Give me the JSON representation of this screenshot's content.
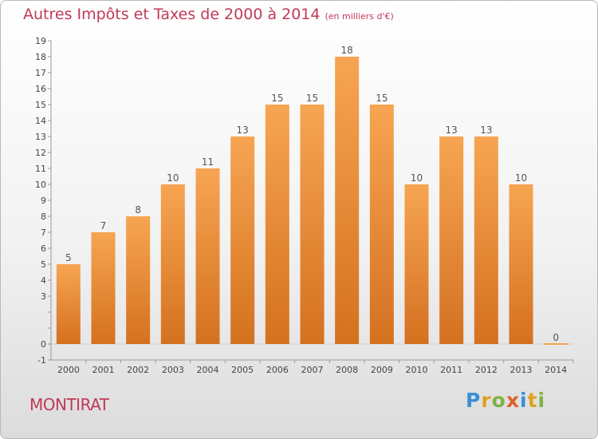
{
  "header": {
    "title": "Autres Impôts et Taxes de 2000 à 2014",
    "subtitle": "(en milliers d'€)"
  },
  "place": "MONTIRAT",
  "logo": {
    "text": "Proxiti",
    "letters": [
      {
        "char": "P",
        "color": "#3a8fd6"
      },
      {
        "char": "r",
        "color": "#e0a020"
      },
      {
        "char": "o",
        "color": "#7cb342"
      },
      {
        "char": "x",
        "color": "#e0602a"
      },
      {
        "char": "i",
        "color": "#3a8fd6"
      },
      {
        "char": "t",
        "color": "#e0a020"
      },
      {
        "char": "i",
        "color": "#7cb342"
      }
    ]
  },
  "colors": {
    "bar_light": "#f7a552",
    "bar_dark": "#d4711f",
    "text_accent": "#c03a58",
    "grid": "#bbbbbb"
  },
  "chart_data": {
    "type": "bar",
    "categories": [
      "2000",
      "2001",
      "2002",
      "2003",
      "2004",
      "2005",
      "2006",
      "2007",
      "2008",
      "2009",
      "2010",
      "2011",
      "2012",
      "2013",
      "2014"
    ],
    "values": [
      5,
      7,
      8,
      10,
      11,
      13,
      15,
      15,
      18,
      15,
      10,
      13,
      13,
      10,
      0
    ],
    "ylim": [
      -1,
      19
    ],
    "yticks": [
      "-1",
      "0",
      "",
      "",
      "3",
      "4",
      "5",
      "6",
      "7",
      "8",
      "9",
      "10",
      "11",
      "12",
      "13",
      "14",
      "15",
      "16",
      "17",
      "18",
      "19"
    ],
    "title": "Autres Impôts et Taxes de 2000 à 2014",
    "subtitle": "(en milliers d'€)",
    "xlabel": "",
    "ylabel": "",
    "grid": false
  }
}
